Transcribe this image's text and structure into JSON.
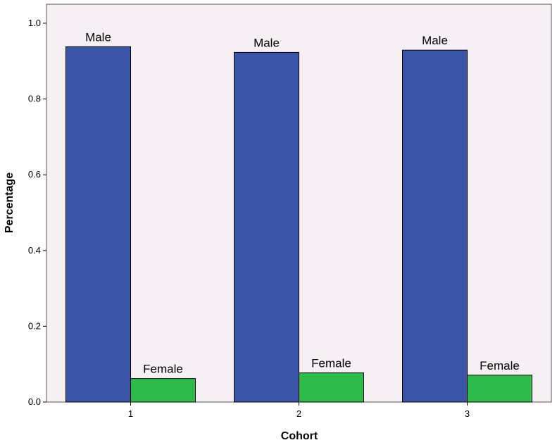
{
  "chart_data": {
    "type": "bar",
    "categories": [
      "1",
      "2",
      "3"
    ],
    "series": [
      {
        "label": "Male",
        "values": [
          0.938,
          0.923,
          0.929
        ],
        "color": "#3A55A8"
      },
      {
        "label": "Female",
        "values": [
          0.062,
          0.077,
          0.071
        ],
        "color": "#2DBB4B"
      }
    ],
    "title": "",
    "xlabel": "Cohort",
    "ylabel": "Percentage",
    "ylim": [
      0,
      1.0
    ],
    "yticks": [
      "0.0",
      "0.2",
      "0.4",
      "0.6",
      "0.8",
      "1.0"
    ],
    "ytick_values": [
      0,
      0.2,
      0.4,
      0.6,
      0.8,
      1.0
    ],
    "grid": false,
    "legend": "none",
    "plot_background": "#F6F0F5",
    "frame_color": "#555555"
  }
}
